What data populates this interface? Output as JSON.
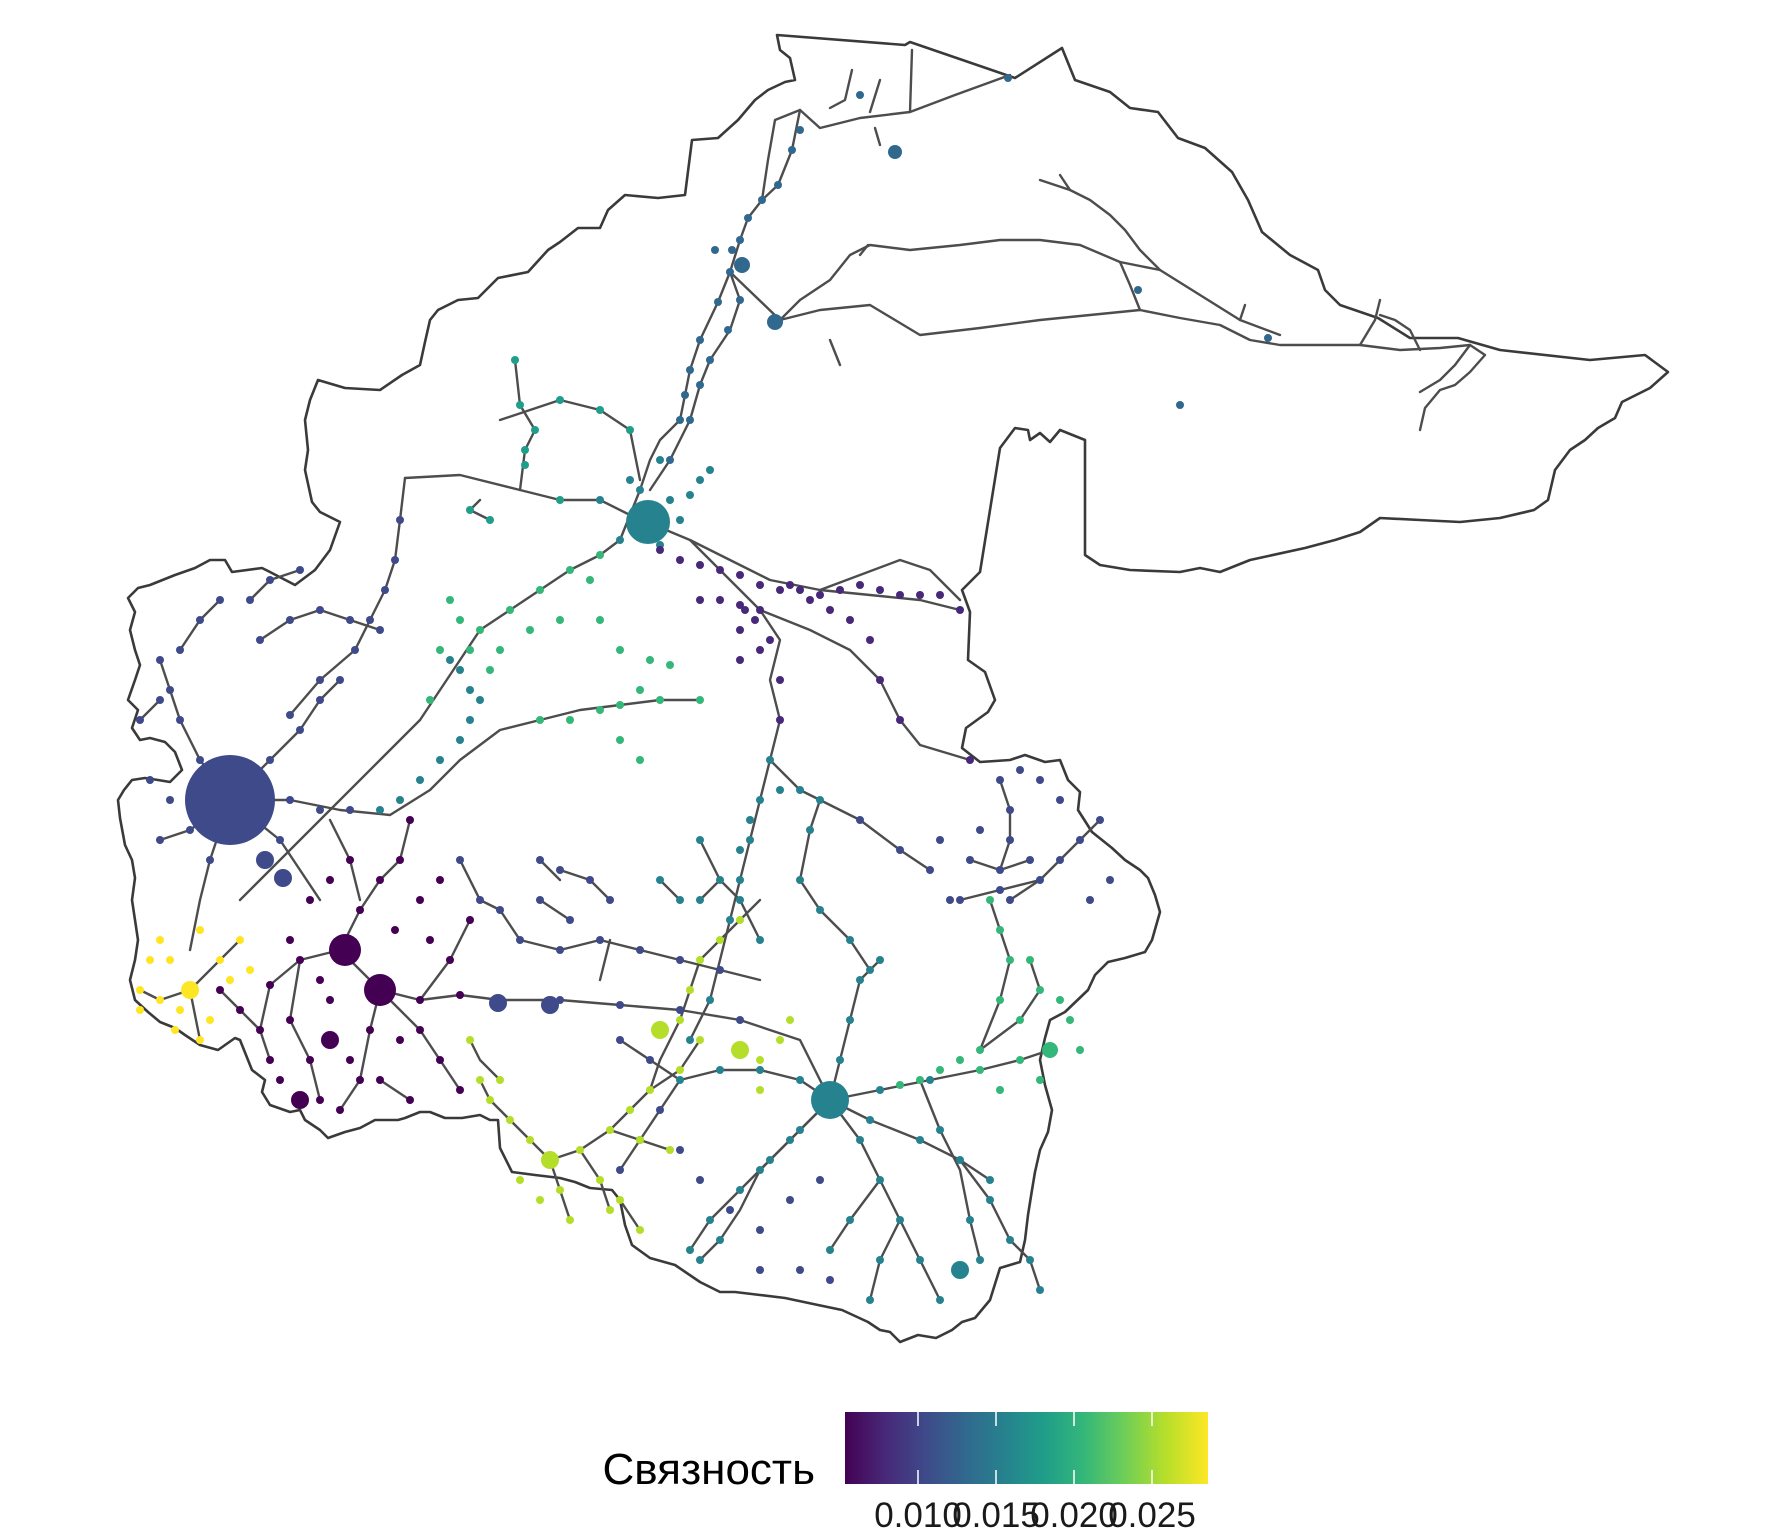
{
  "legend": {
    "title": "Связность",
    "ticks": [
      "0.010",
      "0.015",
      "0.020",
      "0.025"
    ],
    "palette": [
      "#440154",
      "#482878",
      "#3e4a89",
      "#31688e",
      "#26828e",
      "#1f9e89",
      "#35b779",
      "#6ece58",
      "#b5de2b",
      "#fde725"
    ]
  },
  "colors": {
    "boundary": "#3a3a3a",
    "roads": "#4d4d4d",
    "background": "#ffffff"
  }
}
